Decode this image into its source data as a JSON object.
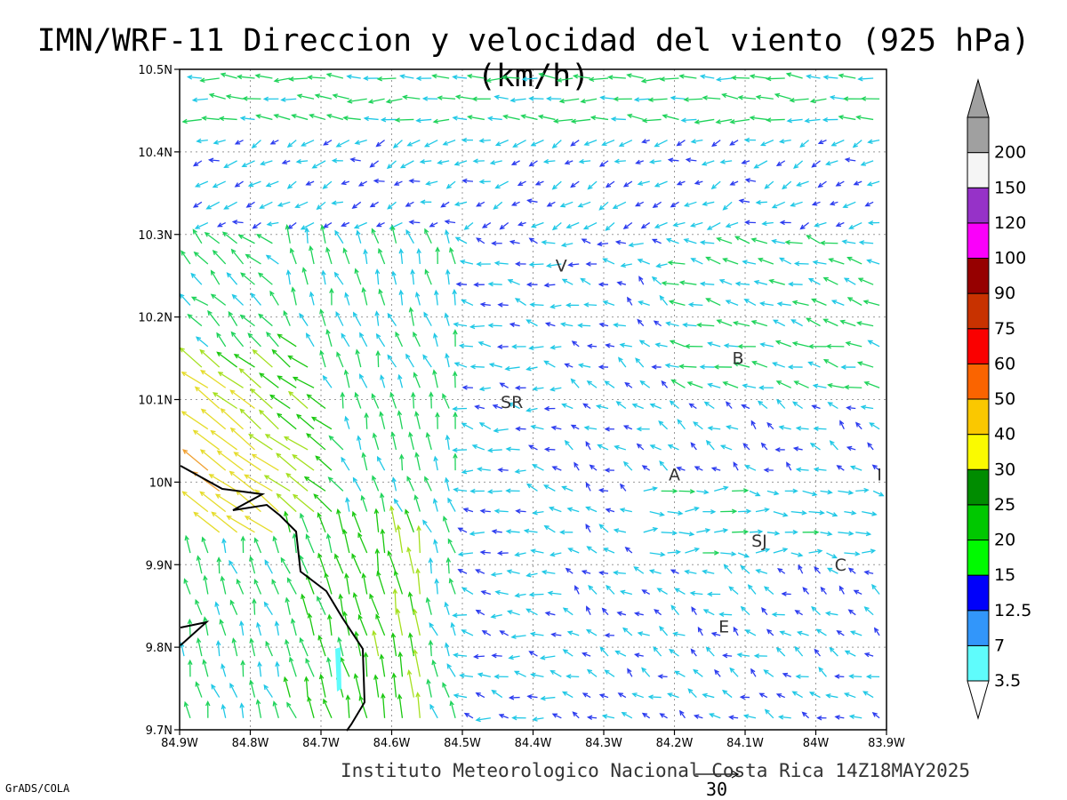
{
  "title": "IMN/WRF-11 Direccion y velocidad del viento (925 hPa)(km/h)",
  "footer": "Instituto Meteorologico Nacional Costa Rica 14Z18MAY2025",
  "software": "GrADS/COLA",
  "map": {
    "lon_range": [
      -84.9,
      -83.9
    ],
    "lat_range": [
      9.7,
      10.5
    ],
    "grid": true,
    "y_ticks": [
      {
        "lat": 10.5,
        "label": "10.5N"
      },
      {
        "lat": 10.4,
        "label": "10.4N"
      },
      {
        "lat": 10.3,
        "label": "10.3N"
      },
      {
        "lat": 10.2,
        "label": "10.2N"
      },
      {
        "lat": 10.1,
        "label": "10.1N"
      },
      {
        "lat": 10.0,
        "label": "10N"
      },
      {
        "lat": 9.9,
        "label": "9.9N"
      },
      {
        "lat": 9.8,
        "label": "9.8N"
      },
      {
        "lat": 9.7,
        "label": "9.7N"
      }
    ],
    "x_ticks": [
      {
        "lon": -84.9,
        "label": "84.9W"
      },
      {
        "lon": -84.8,
        "label": "84.8W"
      },
      {
        "lon": -84.7,
        "label": "84.7W"
      },
      {
        "lon": -84.6,
        "label": "84.6W"
      },
      {
        "lon": -84.5,
        "label": "84.5W"
      },
      {
        "lon": -84.4,
        "label": "84.4W"
      },
      {
        "lon": -84.3,
        "label": "84.3W"
      },
      {
        "lon": -84.2,
        "label": "84.2W"
      },
      {
        "lon": -84.1,
        "label": "84.1W"
      },
      {
        "lon": -84.0,
        "label": "84W"
      },
      {
        "lon": -83.9,
        "label": "83.9W"
      }
    ],
    "station_labels": [
      {
        "text": "V",
        "lon": -84.36,
        "lat": 10.255
      },
      {
        "text": "B",
        "lon": -84.11,
        "lat": 10.143
      },
      {
        "text": "SR",
        "lon": -84.43,
        "lat": 10.09
      },
      {
        "text": "A",
        "lon": -84.2,
        "lat": 10.002
      },
      {
        "text": "I",
        "lon": -83.91,
        "lat": 10.002
      },
      {
        "text": "SJ",
        "lon": -84.08,
        "lat": 9.922
      },
      {
        "text": "C",
        "lon": -83.965,
        "lat": 9.893
      },
      {
        "text": "E",
        "lon": -84.13,
        "lat": 9.818
      }
    ],
    "reference_vector": {
      "label": "30",
      "speed_kmh": 30
    }
  },
  "legend": {
    "unit": "km/h",
    "bins": [
      {
        "label": "3.5",
        "color": "#5ffcfc"
      },
      {
        "label": "7",
        "color": "#3296fa"
      },
      {
        "label": "12.5",
        "color": "#0000fa"
      },
      {
        "label": "15",
        "color": "#00fa00"
      },
      {
        "label": "20",
        "color": "#00c800"
      },
      {
        "label": "25",
        "color": "#008c00"
      },
      {
        "label": "30",
        "color": "#fafa00"
      },
      {
        "label": "40",
        "color": "#fac800"
      },
      {
        "label": "50",
        "color": "#fa6400"
      },
      {
        "label": "60",
        "color": "#fa0000"
      },
      {
        "label": "75",
        "color": "#c83200"
      },
      {
        "label": "90",
        "color": "#960000"
      },
      {
        "label": "100",
        "color": "#fa00fa"
      },
      {
        "label": "120",
        "color": "#9632c8"
      },
      {
        "label": "150",
        "color": "#f5f5f5"
      },
      {
        "label": "200",
        "color": "#a0a0a0"
      }
    ],
    "over_color": "#a0a0a0"
  },
  "speed_colors": {
    "calm": "#9b1fd1",
    "light": "#2b3bef",
    "moderate": "#1fc8e6",
    "fresh": "#1ed35a",
    "strong_green": "#19c80f",
    "yellowgreen": "#a4e01e",
    "yellow": "#e5dc2a",
    "orange": "#f0a032",
    "red": "#e8463c"
  }
}
